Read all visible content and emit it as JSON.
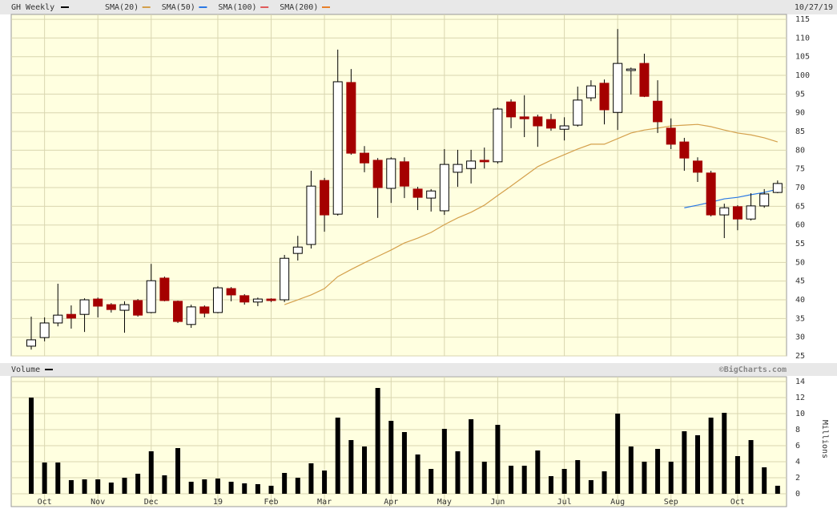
{
  "header": {
    "date": "10/27/19",
    "credit": "©BigCharts.com"
  },
  "chart_data": [
    {
      "type": "candlestick",
      "name": "GH Weekly",
      "color": "#000000",
      "up_color": "#ffffff",
      "down_color": "#a50000",
      "categories": [
        null,
        "Oct",
        null,
        null,
        null,
        "Nov",
        null,
        null,
        null,
        "Dec",
        null,
        null,
        null,
        null,
        "19",
        null,
        null,
        null,
        "Feb",
        null,
        null,
        null,
        "Mar",
        null,
        null,
        null,
        null,
        "Apr",
        null,
        null,
        null,
        "May",
        null,
        null,
        null,
        "Jun",
        null,
        null,
        null,
        null,
        "Jul",
        null,
        null,
        null,
        "Aug",
        null,
        null,
        null,
        "Sep",
        null,
        null,
        null,
        null,
        "Oct",
        null,
        null,
        null
      ],
      "open": [
        27.6,
        29.9,
        33.8,
        36.1,
        36.1,
        40.2,
        38.7,
        37.2,
        39.8,
        36.6,
        45.8,
        39.6,
        33.4,
        38.1,
        36.6,
        43,
        41.1,
        39.4,
        40.2,
        40,
        52.4,
        54.8,
        71.9,
        62.9,
        98.1,
        79.2,
        77.3,
        69.8,
        76.9,
        69.6,
        67.2,
        63.8,
        74.1,
        75.1,
        77.3,
        76.9,
        92.9,
        88.9,
        88.9,
        88.2,
        85.6,
        86.7,
        94,
        97.9,
        90.1,
        101.3,
        103.2,
        93.1,
        85.9,
        82.2,
        77.1,
        73.9,
        62.7,
        64.9,
        61.6,
        65.1,
        68.7
      ],
      "high": [
        35.5,
        35.3,
        44.3,
        38.5,
        40.4,
        40.6,
        39.1,
        39.6,
        40.2,
        49.6,
        46.2,
        39.8,
        38.7,
        38.5,
        43.6,
        43.4,
        41.5,
        40.6,
        40.4,
        52,
        57.1,
        74.5,
        72.6,
        106.9,
        101.7,
        81.1,
        77.9,
        78.1,
        78.1,
        70.2,
        69.6,
        80.3,
        80.1,
        80.1,
        80.7,
        91.4,
        93.6,
        94.7,
        89.5,
        89.7,
        88.8,
        97,
        98.7,
        98.9,
        112.4,
        102.1,
        105.8,
        98.7,
        88.5,
        83.3,
        78.1,
        74.5,
        65.7,
        65.3,
        68.5,
        69.6,
        71.9
      ],
      "low": [
        26.7,
        28.9,
        32.9,
        32.3,
        31.4,
        35.3,
        36.6,
        31.2,
        35.5,
        36.4,
        39.6,
        33.8,
        32.5,
        35.3,
        36.4,
        39.6,
        38.7,
        38.3,
        39.4,
        39.4,
        50.5,
        53.7,
        58.2,
        62.5,
        78.8,
        74.1,
        61.9,
        65.9,
        67.2,
        64,
        63.6,
        62.7,
        70.2,
        71.1,
        75.1,
        76.4,
        85.9,
        83.5,
        80.9,
        85.2,
        82.6,
        86.3,
        93.1,
        86.9,
        85.4,
        94.9,
        94.2,
        84.6,
        80.3,
        74.5,
        71.5,
        62.3,
        56.5,
        58.6,
        61.2,
        64.6,
        68.5
      ],
      "close": [
        29.3,
        33.8,
        35.9,
        35.1,
        40,
        38.3,
        37.4,
        38.7,
        35.9,
        45.1,
        39.8,
        34.2,
        38.1,
        36.4,
        43.2,
        41.3,
        39.4,
        40.2,
        39.8,
        51.1,
        54.1,
        70.4,
        62.7,
        98.3,
        79.2,
        76.6,
        70,
        77.7,
        70.4,
        67.4,
        69.1,
        76.2,
        76.2,
        77.1,
        76.9,
        91,
        88.9,
        88.4,
        86.5,
        85.9,
        86.5,
        93.4,
        97.2,
        90.8,
        103.2,
        101.7,
        94.4,
        87.6,
        81.6,
        77.9,
        74.1,
        62.7,
        64.6,
        61.6,
        65.1,
        68.3,
        71.1
      ],
      "series": [
        {
          "name": "SMA(20)",
          "color": "#d4a04c",
          "values": [
            null,
            null,
            null,
            null,
            null,
            null,
            null,
            null,
            null,
            null,
            null,
            null,
            null,
            null,
            null,
            null,
            null,
            null,
            null,
            38.7,
            40,
            41.3,
            43,
            46.2,
            48.1,
            49.9,
            51.6,
            53.3,
            55.2,
            56.5,
            58,
            60.1,
            61.9,
            63.4,
            65.3,
            67.9,
            70.4,
            73,
            75.6,
            77.3,
            78.8,
            80.3,
            81.6,
            81.6,
            83.1,
            84.6,
            85.4,
            85.9,
            86.5,
            86.7,
            86.9,
            86.3,
            85.4,
            84.6,
            84.1,
            83.3,
            82.2
          ]
        },
        {
          "name": "SMA(50)",
          "color": "#2a78e4",
          "values": [
            null,
            null,
            null,
            null,
            null,
            null,
            null,
            null,
            null,
            null,
            null,
            null,
            null,
            null,
            null,
            null,
            null,
            null,
            null,
            null,
            null,
            null,
            null,
            null,
            null,
            null,
            null,
            null,
            null,
            null,
            null,
            null,
            null,
            null,
            null,
            null,
            null,
            null,
            null,
            null,
            null,
            null,
            null,
            null,
            null,
            null,
            null,
            null,
            null,
            64.6,
            65.3,
            66.1,
            67,
            67.4,
            68.1,
            68.7,
            69.6
          ]
        },
        {
          "name": "SMA(100)",
          "color": "#e05a5a",
          "values": [
            null,
            null,
            null,
            null,
            null,
            null,
            null,
            null,
            null,
            null,
            null,
            null,
            null,
            null,
            null,
            null,
            null,
            null,
            null,
            null,
            null,
            null,
            null,
            null,
            null,
            null,
            null,
            null,
            null,
            null,
            null,
            null,
            null,
            null,
            null,
            null,
            null,
            null,
            null,
            null,
            null,
            null,
            null,
            null,
            null,
            null,
            null,
            null,
            null,
            null,
            null,
            null,
            null,
            null,
            null,
            null,
            null
          ]
        },
        {
          "name": "SMA(200)",
          "color": "#e8802a",
          "values": [
            null,
            null,
            null,
            null,
            null,
            null,
            null,
            null,
            null,
            null,
            null,
            null,
            null,
            null,
            null,
            null,
            null,
            null,
            null,
            null,
            null,
            null,
            null,
            null,
            null,
            null,
            null,
            null,
            null,
            null,
            null,
            null,
            null,
            null,
            null,
            null,
            null,
            null,
            null,
            null,
            null,
            null,
            null,
            null,
            null,
            null,
            null,
            null,
            null,
            null,
            null,
            null,
            null,
            null,
            null,
            null,
            null
          ]
        }
      ],
      "ylim": [
        25,
        116.3
      ],
      "yticks": [
        25,
        30,
        35,
        40,
        45,
        50,
        55,
        60,
        65,
        70,
        75,
        80,
        85,
        90,
        95,
        100,
        105,
        110,
        115
      ],
      "grid": true
    },
    {
      "type": "bar",
      "name": "Volume",
      "color": "#000000",
      "y_label": "Millions",
      "categories": [
        null,
        "Oct",
        null,
        null,
        null,
        "Nov",
        null,
        null,
        null,
        "Dec",
        null,
        null,
        null,
        null,
        "19",
        null,
        null,
        null,
        "Feb",
        null,
        null,
        null,
        "Mar",
        null,
        null,
        null,
        null,
        "Apr",
        null,
        null,
        null,
        "May",
        null,
        null,
        null,
        "Jun",
        null,
        null,
        null,
        null,
        "Jul",
        null,
        null,
        null,
        "Aug",
        null,
        null,
        null,
        "Sep",
        null,
        null,
        null,
        null,
        "Oct",
        null,
        null,
        null
      ],
      "values": [
        12,
        3.9,
        3.9,
        1.7,
        1.8,
        1.8,
        1.4,
        2,
        2.5,
        5.3,
        2.3,
        5.7,
        1.5,
        1.8,
        1.9,
        1.5,
        1.3,
        1.2,
        1,
        2.6,
        2,
        3.8,
        2.9,
        9.5,
        6.7,
        5.9,
        13.2,
        9.1,
        7.7,
        4.9,
        3.1,
        8.1,
        5.3,
        9.3,
        4,
        8.6,
        3.5,
        3.5,
        5.4,
        2.2,
        3.1,
        4.2,
        1.7,
        2.8,
        10,
        5.9,
        4,
        5.6,
        4,
        7.8,
        7.3,
        9.5,
        10.1,
        4.7,
        6.7,
        3.3,
        1
      ],
      "ylim": [
        -1.6,
        14.6
      ],
      "yticks": [
        0,
        2,
        4,
        6,
        8,
        10,
        12,
        14
      ],
      "grid": true
    }
  ]
}
